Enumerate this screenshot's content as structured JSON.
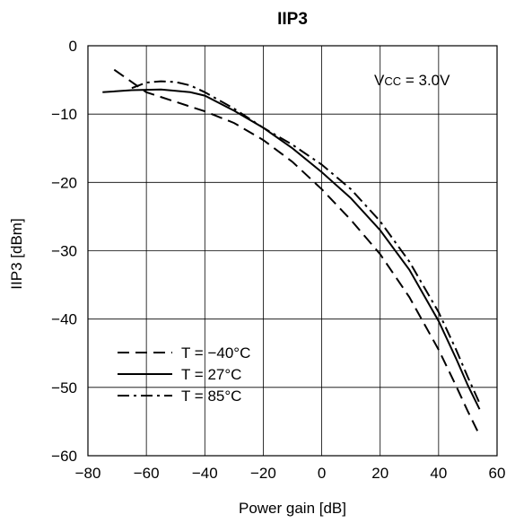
{
  "chart_data": {
    "type": "line",
    "title": "IIP3",
    "xlabel": "Power gain [dB]",
    "ylabel": "IIP3 [dBm]",
    "xlim": [
      -80,
      60
    ],
    "ylim": [
      -60,
      0
    ],
    "xticks": [
      -80,
      -60,
      -40,
      -20,
      0,
      20,
      40,
      60
    ],
    "yticks": [
      0,
      -10,
      -20,
      -30,
      -40,
      -50,
      -60
    ],
    "xtick_labels": [
      "−80",
      "−60",
      "−40",
      "−20",
      "0",
      "20",
      "40",
      "60"
    ],
    "ytick_labels": [
      "0",
      "−10",
      "−20",
      "−30",
      "−40",
      "−50",
      "−60"
    ],
    "grid": true,
    "annotation": {
      "prefix": "V",
      "sub": "CC",
      "suffix": " = 3.0V"
    },
    "legend_position": "bottom-left",
    "series": [
      {
        "name": "T = −40°C",
        "style": "dashed",
        "x": [
          -71,
          -60,
          -50,
          -40,
          -30,
          -20,
          -10,
          0,
          10,
          20,
          30,
          40,
          46,
          50,
          54
        ],
        "y": [
          -3.5,
          -6.8,
          -8.2,
          -9.6,
          -11.3,
          -13.8,
          -17.0,
          -21.0,
          -25.5,
          -30.5,
          -36.8,
          -44.5,
          -49.8,
          -53.5,
          -57.0
        ]
      },
      {
        "name": "T = 27°C",
        "style": "solid",
        "x": [
          -75,
          -65,
          -55,
          -45,
          -40,
          -30,
          -20,
          -10,
          0,
          10,
          20,
          30,
          40,
          46,
          50,
          54
        ],
        "y": [
          -6.8,
          -6.5,
          -6.4,
          -6.8,
          -7.3,
          -9.5,
          -12.0,
          -15.0,
          -18.5,
          -22.3,
          -27.0,
          -32.8,
          -40.3,
          -45.8,
          -49.7,
          -53.2
        ]
      },
      {
        "name": "T = 85°C",
        "style": "dashdot",
        "x": [
          -65,
          -60,
          -55,
          -50,
          -45,
          -40,
          -30,
          -20,
          -10,
          0,
          10,
          20,
          30,
          40,
          46,
          50,
          54
        ],
        "y": [
          -6.2,
          -5.4,
          -5.2,
          -5.3,
          -5.8,
          -6.8,
          -9.2,
          -12.0,
          -14.5,
          -17.4,
          -21.0,
          -25.7,
          -31.6,
          -39.0,
          -44.5,
          -48.5,
          -52.3
        ]
      }
    ]
  }
}
